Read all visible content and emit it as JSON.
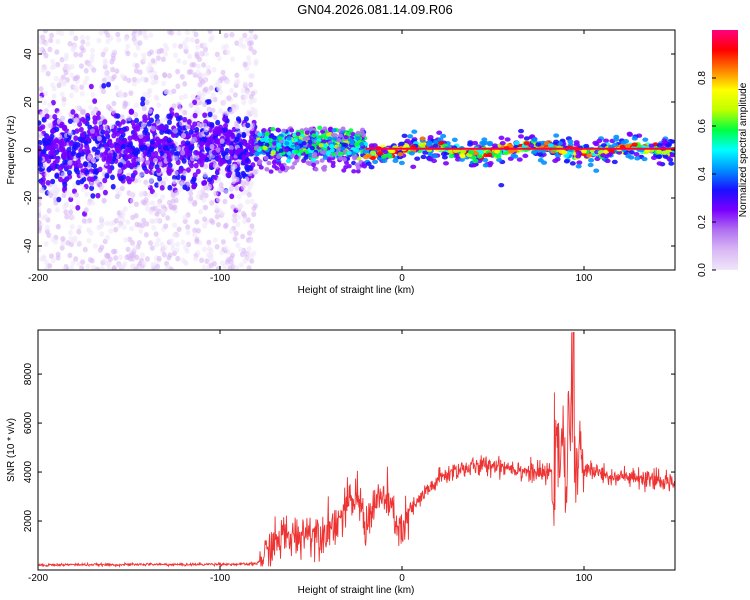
{
  "title": "GN04.2026.081.14.09.R06",
  "chart_data": [
    {
      "type": "heatmap",
      "name": "spectrogram",
      "xlabel": "Height of straight line (km)",
      "ylabel": "Frequency (Hz)",
      "xlim": [
        -200,
        150
      ],
      "ylim": [
        -50,
        50
      ],
      "xticks": [
        -200,
        -100,
        0,
        100
      ],
      "yticks": [
        -40,
        -20,
        0,
        20,
        40
      ],
      "colorbar": {
        "label": "Normalized spectral amplitude",
        "range": [
          0.0,
          1.0
        ],
        "ticks": [
          0.0,
          0.2,
          0.4,
          0.6,
          0.8
        ],
        "colors": [
          "#f0e6fa",
          "#d9b8f5",
          "#b070f0",
          "#7a00ff",
          "#1a10ff",
          "#0090ff",
          "#00ffff",
          "#00ff40",
          "#c0ff00",
          "#ffff00",
          "#ff8000",
          "#ff0000",
          "#ff0080"
        ]
      },
      "regions": [
        {
          "x": [
            -200,
            -80
          ],
          "description_level": "noise",
          "freq_spread": 50,
          "core_spread": 8,
          "amplitude": 0.15
        },
        {
          "x": [
            -80,
            -20
          ],
          "description_level": "signal",
          "freq_spread": 6,
          "core_spread": 4,
          "amplitude": 0.45
        },
        {
          "x": [
            -20,
            150
          ],
          "description_level": "carrier",
          "freq_spread": 3,
          "core_spread": 1,
          "amplitude": 0.9
        }
      ]
    },
    {
      "type": "line",
      "name": "snr",
      "xlabel": "Height of straight line (km)",
      "ylabel": "SNR (10 * v/v)",
      "xlim": [
        -200,
        150
      ],
      "ylim": [
        0,
        9800
      ],
      "xticks": [
        -200,
        -100,
        0,
        100
      ],
      "yticks": [
        2000,
        4000,
        6000,
        8000
      ],
      "color": "#ee3333",
      "x": [
        -200,
        -180,
        -160,
        -140,
        -120,
        -100,
        -90,
        -80,
        -75,
        -70,
        -65,
        -60,
        -55,
        -50,
        -45,
        -40,
        -35,
        -30,
        -25,
        -22,
        -20,
        -18,
        -15,
        -10,
        -5,
        0,
        5,
        10,
        15,
        20,
        25,
        30,
        40,
        50,
        60,
        70,
        80,
        85,
        88,
        90,
        93,
        95,
        98,
        100,
        105,
        110,
        120,
        130,
        140,
        150
      ],
      "y": [
        200,
        220,
        210,
        230,
        220,
        240,
        230,
        250,
        600,
        1100,
        1400,
        1300,
        1500,
        1600,
        1500,
        1800,
        2000,
        2600,
        3000,
        2500,
        1800,
        2200,
        2700,
        3000,
        2300,
        1500,
        2400,
        2900,
        3300,
        3700,
        3900,
        4100,
        4200,
        4300,
        4200,
        4000,
        3900,
        4200,
        5500,
        3000,
        7500,
        3500,
        4500,
        4000,
        4100,
        3900,
        3800,
        3700,
        3600,
        3600
      ],
      "peak": {
        "x": 94,
        "y": 9700
      }
    }
  ]
}
